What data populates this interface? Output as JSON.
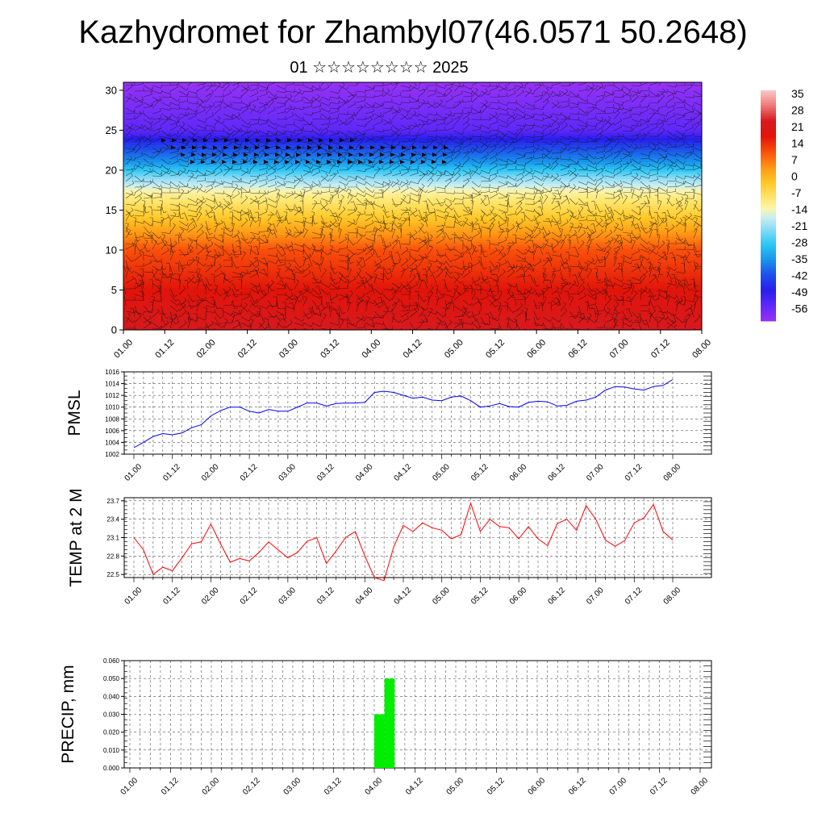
{
  "title": "Kazhydromet for Zhambyl07(46.0571 50.2648)",
  "subtitle": "01 ☆☆☆☆☆☆☆☆ 2025",
  "colors": {
    "pmsl_line": "#0000ff",
    "temp_line": "#ff0000",
    "precip_bar": "#00ee00"
  },
  "chart_data": [
    {
      "type": "heatmap",
      "name": "upper-air temperature and wind cross-section",
      "x_ticks": [
        "01.00",
        "01.12",
        "02.00",
        "02.12",
        "03.00",
        "03.12",
        "04.00",
        "04.12",
        "05.00",
        "05.12",
        "06.00",
        "06.12",
        "07.00",
        "07.12",
        "08.00"
      ],
      "ylim": [
        0,
        31
      ],
      "y_ticks": [
        0,
        5,
        10,
        15,
        20,
        25,
        30
      ],
      "colorbar": {
        "labels": [
          "35",
          "28",
          "21",
          "14",
          "7",
          "0",
          "-7",
          "-14",
          "-21",
          "-28",
          "-35",
          "-42",
          "-49",
          "-56"
        ],
        "range": [
          -63,
          42
        ]
      },
      "temperature_by_level": [
        {
          "level": 0,
          "value": 28
        },
        {
          "level": 5,
          "value": 21
        },
        {
          "level": 10,
          "value": 14
        },
        {
          "level": 14,
          "value": 0
        },
        {
          "level": 17,
          "value": -10
        },
        {
          "level": 19,
          "value": -21
        },
        {
          "level": 21,
          "value": -35
        },
        {
          "level": 23,
          "value": -44
        },
        {
          "level": 25,
          "value": -56
        },
        {
          "level": 31,
          "value": -63
        }
      ]
    },
    {
      "type": "line",
      "ylabel": "PMSL",
      "ylim": [
        1002,
        1016
      ],
      "y_ticks": [
        1002,
        1004,
        1006,
        1008,
        1010,
        1012,
        1014,
        1016
      ],
      "x_ticks": [
        "01.00",
        "01.12",
        "02.00",
        "02.12",
        "03.00",
        "03.12",
        "04.00",
        "04.12",
        "05.00",
        "05.12",
        "06.00",
        "06.12",
        "07.00",
        "07.12",
        "08.00"
      ],
      "x_step_hours": 3,
      "values": [
        1003.1,
        1004.0,
        1005.0,
        1005.5,
        1005.3,
        1005.6,
        1006.5,
        1007.0,
        1008.5,
        1009.4,
        1010.0,
        1010.0,
        1009.3,
        1009.0,
        1009.6,
        1009.3,
        1009.3,
        1010.0,
        1010.7,
        1010.7,
        1010.2,
        1010.6,
        1010.7,
        1010.7,
        1010.8,
        1012.5,
        1012.7,
        1012.5,
        1012.0,
        1011.5,
        1011.7,
        1011.2,
        1011.1,
        1011.7,
        1011.9,
        1011.1,
        1010.0,
        1010.2,
        1010.6,
        1010.1,
        1010.0,
        1010.8,
        1011.0,
        1010.9,
        1010.2,
        1010.3,
        1011.0,
        1011.2,
        1011.7,
        1012.9,
        1013.5,
        1013.4,
        1013.1,
        1012.9,
        1013.5,
        1013.7,
        1014.7
      ]
    },
    {
      "type": "line",
      "ylabel": "TEMP at 2 M",
      "ylim": [
        22.45,
        23.75
      ],
      "y_ticks": [
        22.5,
        22.8,
        23.1,
        23.4,
        23.7
      ],
      "x_ticks": [
        "01.00",
        "01.12",
        "02.00",
        "02.12",
        "03.00",
        "03.12",
        "04.00",
        "04.12",
        "05.00",
        "05.12",
        "06.00",
        "06.12",
        "07.00",
        "07.12",
        "08.00"
      ],
      "x_step_hours": 3,
      "values": [
        23.1,
        22.9,
        22.5,
        22.62,
        22.56,
        22.77,
        23.0,
        23.03,
        23.32,
        23.0,
        22.7,
        22.76,
        22.72,
        22.86,
        23.03,
        22.9,
        22.77,
        22.86,
        23.04,
        23.1,
        22.68,
        22.88,
        23.1,
        23.2,
        22.8,
        22.45,
        22.4,
        22.95,
        23.3,
        23.2,
        23.34,
        23.26,
        23.22,
        23.08,
        23.15,
        23.66,
        23.2,
        23.4,
        23.28,
        23.26,
        23.08,
        23.28,
        23.08,
        22.97,
        23.33,
        23.4,
        23.22,
        23.62,
        23.4,
        23.06,
        22.96,
        23.05,
        23.34,
        23.42,
        23.64,
        23.2,
        23.06
      ]
    },
    {
      "type": "bar",
      "ylabel": "PRECIP, mm",
      "ylim": [
        0,
        0.06
      ],
      "y_ticks": [
        "0.000",
        "0.010",
        "0.020",
        "0.030",
        "0.040",
        "0.050",
        "0.060"
      ],
      "x_ticks": [
        "01.00",
        "01.12",
        "02.00",
        "02.12",
        "03.00",
        "03.12",
        "04.00",
        "04.12",
        "05.00",
        "05.12",
        "06.00",
        "06.12",
        "07.00",
        "07.12",
        "08.00"
      ],
      "bars": [
        {
          "time": "04.00",
          "value": 0.03
        },
        {
          "time": "04.03",
          "value": 0.05
        }
      ]
    }
  ]
}
